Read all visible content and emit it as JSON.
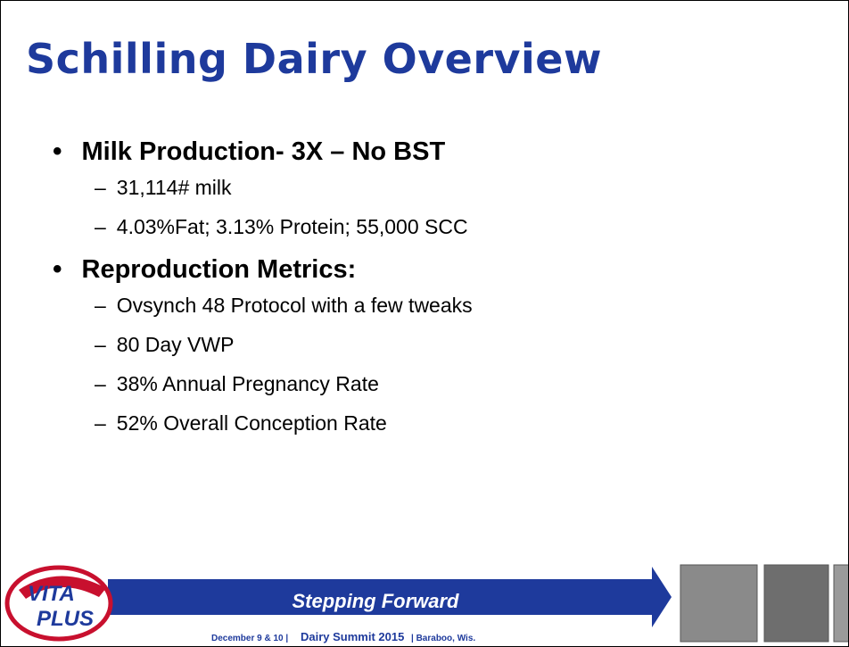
{
  "header": {
    "title": "Schilling Dairy Overview"
  },
  "bullets": [
    {
      "text": "Milk Production- 3X – No BST",
      "items": [
        "31,114# milk",
        "4.03%Fat; 3.13% Protein; 55,000 SCC"
      ]
    },
    {
      "text": "Reproduction Metrics:",
      "items": [
        "Ovsynch 48 Protocol with a few tweaks",
        "80 Day VWP",
        "38% Annual Pregnancy Rate",
        "52% Overall Conception Rate"
      ]
    }
  ],
  "footer": {
    "logo_top": "VITA",
    "logo_bottom": "PLUS",
    "slogan": "Stepping Forward",
    "dates": "December 9 & 10 |",
    "event": "Dairy Summit 2015",
    "place": "| Baraboo, Wis."
  }
}
